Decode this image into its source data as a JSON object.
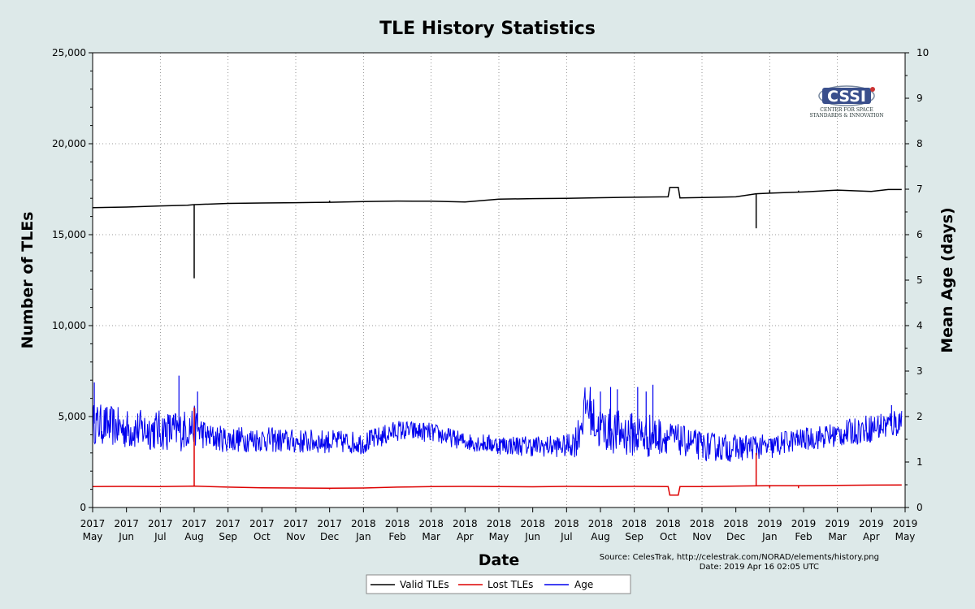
{
  "chart_data": {
    "type": "line",
    "title": "TLE History Statistics",
    "xlabel": "Date",
    "ylabel_left": "Number of TLEs",
    "ylabel_right": "Mean Age (days)",
    "ylim_left": [
      0,
      25000
    ],
    "ylim_right": [
      0,
      10
    ],
    "left_ticks": [
      "0",
      "5,000",
      "10,000",
      "15,000",
      "20,000",
      "25,000"
    ],
    "left_tick_values": [
      0,
      5000,
      10000,
      15000,
      20000,
      25000
    ],
    "right_ticks": [
      "0",
      "1",
      "2",
      "3",
      "4",
      "5",
      "6",
      "7",
      "8",
      "9",
      "10"
    ],
    "right_tick_values": [
      0,
      1,
      2,
      3,
      4,
      5,
      6,
      7,
      8,
      9,
      10
    ],
    "x_ticks": [
      {
        "year": "2017",
        "month": "May"
      },
      {
        "year": "2017",
        "month": "Jun"
      },
      {
        "year": "2017",
        "month": "Jul"
      },
      {
        "year": "2017",
        "month": "Aug"
      },
      {
        "year": "2017",
        "month": "Sep"
      },
      {
        "year": "2017",
        "month": "Oct"
      },
      {
        "year": "2017",
        "month": "Nov"
      },
      {
        "year": "2017",
        "month": "Dec"
      },
      {
        "year": "2018",
        "month": "Jan"
      },
      {
        "year": "2018",
        "month": "Feb"
      },
      {
        "year": "2018",
        "month": "Mar"
      },
      {
        "year": "2018",
        "month": "Apr"
      },
      {
        "year": "2018",
        "month": "May"
      },
      {
        "year": "2018",
        "month": "Jun"
      },
      {
        "year": "2018",
        "month": "Jul"
      },
      {
        "year": "2018",
        "month": "Aug"
      },
      {
        "year": "2018",
        "month": "Sep"
      },
      {
        "year": "2018",
        "month": "Oct"
      },
      {
        "year": "2018",
        "month": "Nov"
      },
      {
        "year": "2018",
        "month": "Dec"
      },
      {
        "year": "2019",
        "month": "Jan"
      },
      {
        "year": "2019",
        "month": "Feb"
      },
      {
        "year": "2019",
        "month": "Mar"
      },
      {
        "year": "2019",
        "month": "Apr"
      },
      {
        "year": "2019",
        "month": "May"
      }
    ],
    "x_unit": "months since 2017 May",
    "series": [
      {
        "name": "Valid TLEs",
        "color": "#000000",
        "axis": "left",
        "points": [
          [
            0,
            16480
          ],
          [
            1,
            16520
          ],
          [
            2,
            16580
          ],
          [
            2.8,
            16620
          ],
          [
            3,
            16650
          ],
          [
            4,
            16720
          ],
          [
            5,
            16740
          ],
          [
            6,
            16760
          ],
          [
            7,
            16780
          ],
          [
            8,
            16820
          ],
          [
            9,
            16850
          ],
          [
            10,
            16840
          ],
          [
            11,
            16800
          ],
          [
            12,
            16950
          ],
          [
            13,
            16980
          ],
          [
            14,
            17000
          ],
          [
            15,
            17030
          ],
          [
            16,
            17060
          ],
          [
            17,
            17080
          ],
          [
            17.05,
            17600
          ],
          [
            17.3,
            17600
          ],
          [
            17.35,
            17020
          ],
          [
            18,
            17040
          ],
          [
            19,
            17080
          ],
          [
            19.6,
            17250
          ],
          [
            20,
            17280
          ],
          [
            21,
            17350
          ],
          [
            22,
            17450
          ],
          [
            23,
            17380
          ],
          [
            23.5,
            17480
          ],
          [
            23.9,
            17480
          ]
        ],
        "spikes": [
          [
            3.0,
            12600
          ],
          [
            19.6,
            15350
          ]
        ],
        "markers": [
          [
            7.0,
            16870
          ],
          [
            20.0,
            17450
          ],
          [
            20.85,
            17420
          ]
        ]
      },
      {
        "name": "Lost TLEs",
        "color": "#dd0000",
        "axis": "left",
        "points": [
          [
            0,
            1150
          ],
          [
            1,
            1160
          ],
          [
            2,
            1150
          ],
          [
            3,
            1180
          ],
          [
            4,
            1120
          ],
          [
            5,
            1080
          ],
          [
            6,
            1070
          ],
          [
            7,
            1060
          ],
          [
            8,
            1070
          ],
          [
            9,
            1120
          ],
          [
            10,
            1150
          ],
          [
            11,
            1160
          ],
          [
            12,
            1150
          ],
          [
            13,
            1140
          ],
          [
            14,
            1160
          ],
          [
            15,
            1150
          ],
          [
            16,
            1160
          ],
          [
            17,
            1150
          ],
          [
            17.05,
            680
          ],
          [
            17.3,
            680
          ],
          [
            17.35,
            1150
          ],
          [
            18,
            1150
          ],
          [
            19,
            1180
          ],
          [
            20,
            1200
          ],
          [
            21,
            1200
          ],
          [
            22,
            1220
          ],
          [
            23,
            1230
          ],
          [
            23.9,
            1240
          ]
        ],
        "spikes": [
          [
            3.0,
            5500
          ],
          [
            19.6,
            3000
          ]
        ],
        "markers": [
          [
            7.0,
            1000
          ],
          [
            20.0,
            1080
          ],
          [
            20.85,
            1060
          ]
        ]
      },
      {
        "name": "Age",
        "color": "#0000ee",
        "axis": "right",
        "points": [
          [
            0,
            1.85
          ],
          [
            0.5,
            1.8
          ],
          [
            1,
            1.72
          ],
          [
            2,
            1.7
          ],
          [
            2.6,
            1.68
          ],
          [
            3,
            1.8
          ],
          [
            3.4,
            1.55
          ],
          [
            4,
            1.5
          ],
          [
            5,
            1.5
          ],
          [
            6,
            1.45
          ],
          [
            7,
            1.45
          ],
          [
            8,
            1.42
          ],
          [
            8.5,
            1.55
          ],
          [
            9,
            1.7
          ],
          [
            10,
            1.65
          ],
          [
            11,
            1.45
          ],
          [
            12,
            1.38
          ],
          [
            13,
            1.35
          ],
          [
            14,
            1.35
          ],
          [
            14.3,
            1.5
          ],
          [
            14.6,
            2.3
          ],
          [
            14.9,
            1.75
          ],
          [
            15.5,
            1.65
          ],
          [
            16,
            1.6
          ],
          [
            17,
            1.55
          ],
          [
            18,
            1.35
          ],
          [
            19,
            1.3
          ],
          [
            19.6,
            1.35
          ],
          [
            20,
            1.3
          ],
          [
            20.5,
            1.45
          ],
          [
            21,
            1.5
          ],
          [
            22,
            1.6
          ],
          [
            23,
            1.75
          ],
          [
            23.5,
            1.82
          ],
          [
            23.9,
            1.9
          ]
        ],
        "noise": [
          [
            0,
            0.45
          ],
          [
            3,
            0.45
          ],
          [
            3.4,
            0.3
          ],
          [
            8,
            0.25
          ],
          [
            11,
            0.2
          ],
          [
            14,
            0.25
          ],
          [
            14.5,
            0.5
          ],
          [
            16.5,
            0.5
          ],
          [
            17,
            0.35
          ],
          [
            19,
            0.3
          ],
          [
            21,
            0.25
          ],
          [
            23.9,
            0.35
          ]
        ],
        "peaks": [
          [
            0.05,
            2.75
          ],
          [
            2.55,
            2.9
          ],
          [
            3.1,
            2.55
          ],
          [
            14.7,
            2.65
          ],
          [
            15.0,
            2.55
          ],
          [
            15.3,
            2.65
          ],
          [
            15.5,
            2.6
          ],
          [
            16.1,
            2.65
          ],
          [
            16.35,
            2.55
          ],
          [
            16.55,
            2.7
          ],
          [
            23.6,
            2.25
          ]
        ]
      }
    ],
    "source_lines": [
      "Source: CelesTrak, http://celestrak.com/NORAD/elements/history.png",
      "Date: 2019 Apr 16 02:05 UTC"
    ],
    "logo": {
      "abbr": "CSSI",
      "line1": "CENTER FOR SPACE",
      "line2": "STANDARDS & INNOVATION"
    },
    "legend_position": "bottom-center"
  }
}
